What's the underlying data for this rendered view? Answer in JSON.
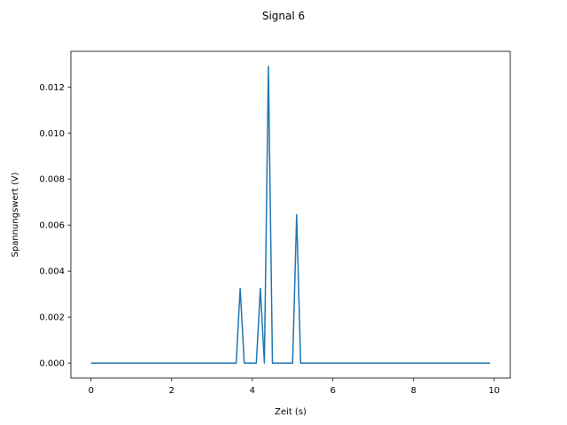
{
  "chart_data": {
    "type": "line",
    "title": "Signal 6",
    "xlabel": "Zeit (s)",
    "ylabel": "Spannungswert (V)",
    "xlim": [
      -0.5,
      10.4
    ],
    "ylim": [
      -0.00065,
      0.01355
    ],
    "xticks": [
      0,
      2,
      4,
      6,
      8,
      10
    ],
    "xtick_labels": [
      "0",
      "2",
      "4",
      "6",
      "8",
      "10"
    ],
    "yticks": [
      0,
      0.002,
      0.004,
      0.006,
      0.008,
      0.01,
      0.012
    ],
    "ytick_labels": [
      "0.000",
      "0.002",
      "0.004",
      "0.006",
      "0.008",
      "0.010",
      "0.012"
    ],
    "grid": false,
    "legend": "none",
    "series": [
      {
        "color": "#1f77b4",
        "x": [
          0,
          3.6,
          3.7,
          3.8,
          4.1,
          4.2,
          4.3,
          4.4,
          4.5,
          5.0,
          5.1,
          5.2,
          9.9
        ],
        "y": [
          0,
          0,
          0.00325,
          0,
          0,
          0.00325,
          0,
          0.0129,
          0,
          0,
          0.00645,
          0,
          0
        ]
      }
    ]
  }
}
